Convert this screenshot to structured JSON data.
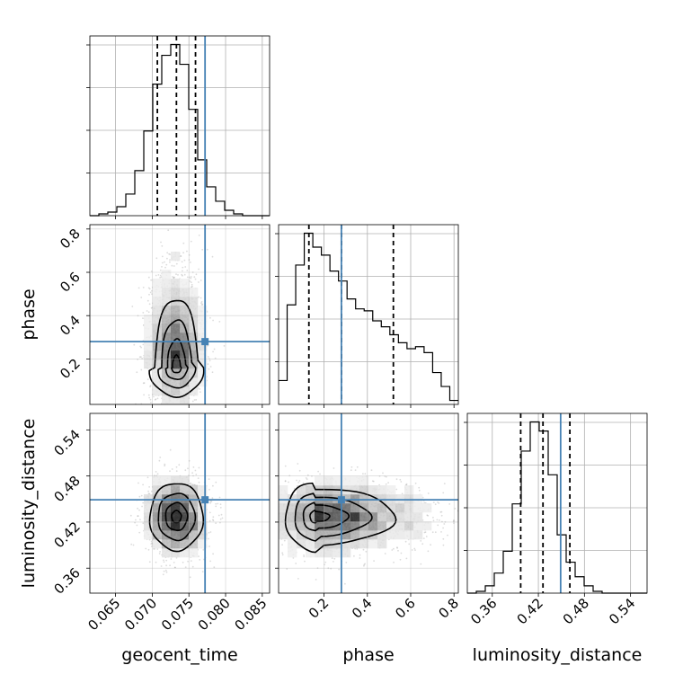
{
  "chart_data": {
    "type": "corner",
    "parameters": [
      "geocent_time",
      "phase",
      "luminosity_distance"
    ],
    "axis_labels": {
      "geocent_time": "geocent_time",
      "phase": "phase",
      "luminosity_distance": "luminosity_distance"
    },
    "ranges": {
      "geocent_time": [
        0.0615,
        0.086
      ],
      "phase": [
        -0.01,
        0.82
      ],
      "luminosity_distance": [
        0.3275,
        0.5615
      ]
    },
    "ticks": {
      "geocent_time": [
        0.065,
        0.07,
        0.075,
        0.08,
        0.085
      ],
      "phase": [
        0.2,
        0.4,
        0.6,
        0.8
      ],
      "luminosity_distance": [
        0.36,
        0.42,
        0.48,
        0.54
      ]
    },
    "tick_labels": {
      "geocent_time": [
        "0.065",
        "0.070",
        "0.075",
        "0.080",
        "0.085"
      ],
      "phase": [
        "0.2",
        "0.4",
        "0.6",
        "0.8"
      ],
      "luminosity_distance": [
        "0.36",
        "0.42",
        "0.48",
        "0.54"
      ]
    },
    "truths": {
      "geocent_time": 0.0772,
      "phase": 0.28,
      "luminosity_distance": 0.449
    },
    "truth_color": "#4682b4",
    "quantiles": {
      "geocent_time": [
        0.0707,
        0.0733,
        0.0759
      ],
      "phase": [
        0.13,
        0.28,
        0.52
      ],
      "luminosity_distance": [
        0.397,
        0.426,
        0.461
      ]
    },
    "histograms": {
      "geocent_time": {
        "edges_range": [
          0.0615,
          0.086
        ],
        "counts": [
          0,
          1,
          2,
          5,
          12,
          25,
          47,
          73,
          89,
          95,
          84,
          59,
          31,
          16,
          8,
          3,
          1,
          0,
          0,
          0
        ]
      },
      "phase": {
        "edges_range": [
          -0.01,
          0.82
        ],
        "counts": [
          12,
          50,
          70,
          86,
          79,
          75,
          67,
          62,
          53,
          48,
          47,
          42,
          39,
          35,
          31,
          28,
          29,
          26,
          16,
          9,
          2
        ]
      },
      "luminosity_distance": {
        "edges_range": [
          0.3275,
          0.5615
        ],
        "counts": [
          0,
          1,
          4,
          11,
          23,
          49,
          78,
          94,
          89,
          65,
          32,
          17,
          9,
          4,
          1,
          0,
          0,
          0,
          0,
          0
        ]
      }
    },
    "density_2d": [
      {
        "x": "geocent_time",
        "y": "phase",
        "center": [
          0.0733,
          0.16
        ],
        "spread": [
          0.0018,
          0.17
        ],
        "skew_y": 2.2,
        "contours": 4
      },
      {
        "x": "geocent_time",
        "y": "luminosity_distance",
        "center": [
          0.0733,
          0.427
        ],
        "spread": [
          0.0019,
          0.023
        ],
        "skew_y": 0,
        "contours": 4
      },
      {
        "x": "phase",
        "y": "luminosity_distance",
        "center": [
          0.16,
          0.427
        ],
        "spread": [
          0.19,
          0.022
        ],
        "skew_x": 2.0,
        "contours": 4
      }
    ],
    "grid": true
  }
}
